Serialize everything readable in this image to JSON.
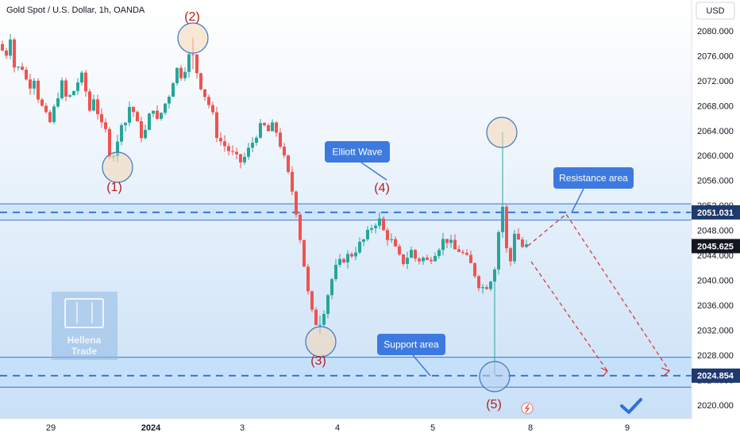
{
  "header": {
    "title": "Gold Spot / U.S. Dollar, 1h, OANDA",
    "currency": "USD"
  },
  "chart_data": {
    "type": "candlestick",
    "y_axis_ticks": [
      2020,
      2024,
      2028,
      2032,
      2036,
      2040,
      2044,
      2048,
      2052,
      2056,
      2060,
      2064,
      2068,
      2072,
      2076,
      2080
    ],
    "y_axis_tick_labels": [
      "2020.000",
      "2024.000",
      "2028.000",
      "2032.000",
      "2036.000",
      "2040.000",
      "2044.000",
      "2048.000",
      "2052.000",
      "2056.000",
      "2060.000",
      "2064.000",
      "2068.000",
      "2072.000",
      "2076.000",
      "2080.000"
    ],
    "ylim": [
      2019,
      2083
    ],
    "x_axis_labels": [
      "29",
      "2024",
      "3",
      "4",
      "5",
      "8",
      "9"
    ],
    "price_labels": {
      "resistance": "2051.031",
      "current": "2045.625",
      "support": "2024.854"
    },
    "resistance_zone": [
      2049.8,
      2052.4
    ],
    "resistance_level": 2051.031,
    "support_zone": [
      2023.0,
      2027.8
    ],
    "support_level": 2024.854,
    "current_price": 2045.625,
    "wave_labels": [
      "(1)",
      "(2)",
      "(3)",
      "(4)",
      "(5)"
    ],
    "annotations": {
      "elliott_wave": "Elliott Wave",
      "resistance_area": "Resistance area",
      "support_area": "Support area"
    },
    "watermark": "Hellena Trade",
    "colors": {
      "up": "#26a69a",
      "down": "#ef5350",
      "zone": "#bbdefb",
      "zone_line": "#3c75c9",
      "annotation_bg": "#3d7ae0",
      "wave_label": "#b71c1c",
      "projection": "#d32f2f"
    }
  }
}
